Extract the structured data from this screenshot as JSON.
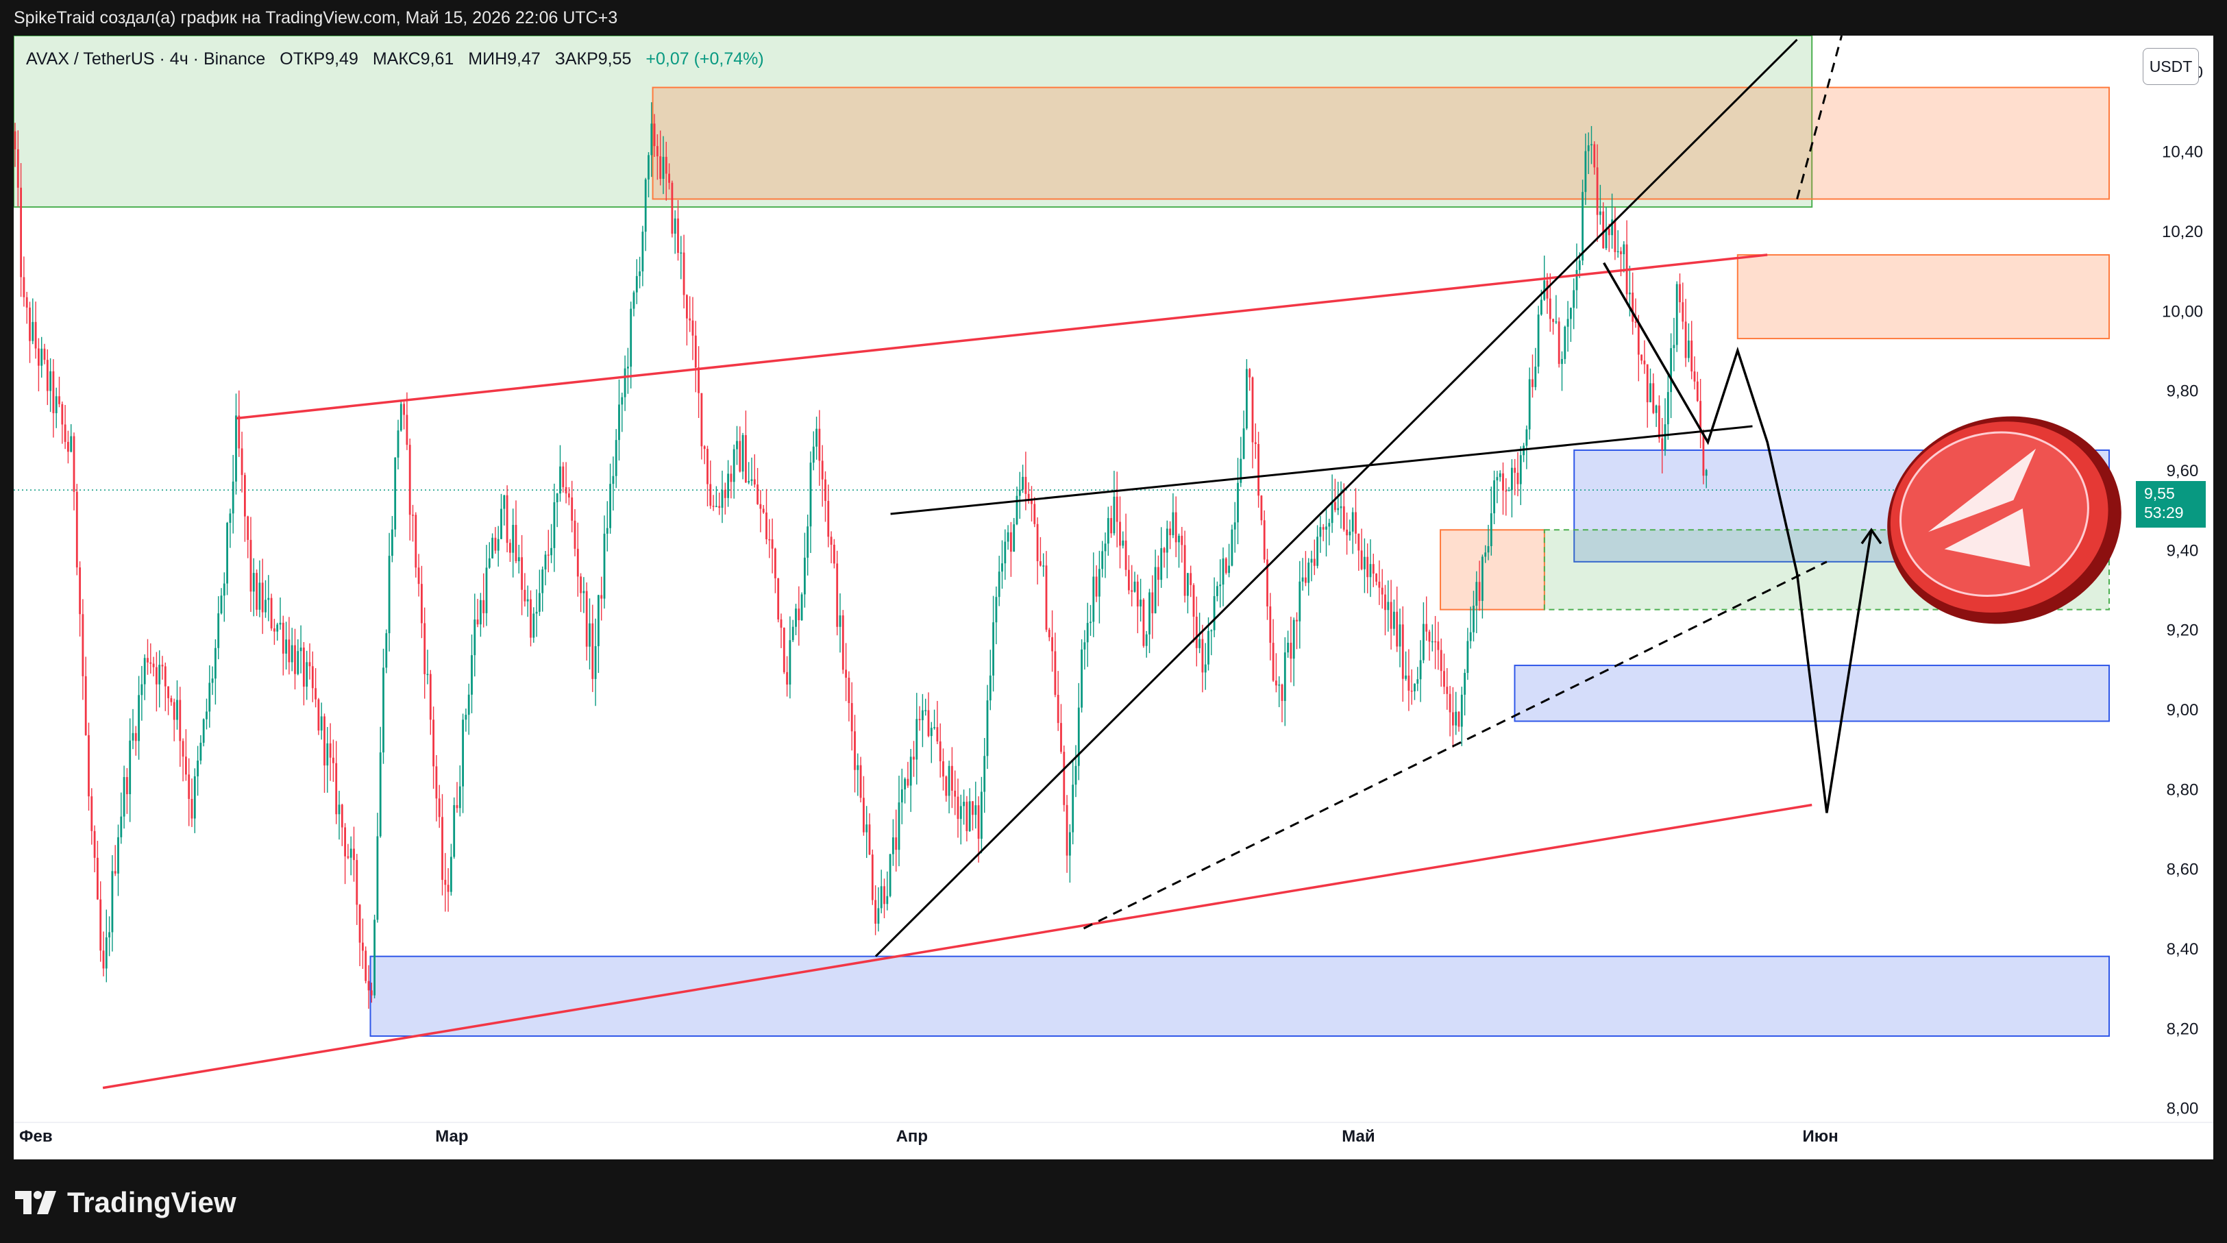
{
  "header": {
    "attribution": "SpikeTraid создал(а) график на TradingView.com, Май 15, 2026 22:06 UTC+3"
  },
  "legend": {
    "symbol": "AVAX / TetherUS · 4ч · Binance",
    "open": "ОТКР9,49",
    "high": "МАКС9,61",
    "low": "МИН9,47",
    "close": "ЗАКР9,55",
    "change": "+0,07 (+0,74%)"
  },
  "price_axis": {
    "unit": "USDT",
    "ticks": [
      "10,60",
      "10,40",
      "10,20",
      "10,00",
      "9,80",
      "9,60",
      "9,40",
      "9,20",
      "9,00",
      "8,80",
      "8,60",
      "8,40",
      "8,20",
      "8,00"
    ]
  },
  "time_axis": {
    "labels": [
      "Фев",
      "Мар",
      "Апр",
      "Май",
      "Июн"
    ]
  },
  "last_price": {
    "value": "9,55",
    "countdown": "53:29",
    "color": "#089981"
  },
  "footer": {
    "brand": "TradingView",
    "logo_icon": "tradingview-logo-icon"
  },
  "overlay_icon": "red-paper-plane-badge-icon",
  "colors": {
    "up": "#089981",
    "down": "#f23645",
    "trendline_red": "#f23645",
    "trendline_black": "#000000",
    "zone_green": "#4caf50",
    "zone_orange": "#ff7a3d",
    "zone_blue": "#2f57e8"
  },
  "chart_data": {
    "type": "candlestick",
    "symbol": "AVAX / TetherUS",
    "interval": "4ч",
    "exchange": "Binance",
    "y_unit": "USDT",
    "ylim": [
      7.96,
      10.69
    ],
    "xlim": [
      "2026-02-01",
      "2026-06-22"
    ],
    "x_ticks": [
      "2026-02-01",
      "2026-03-01",
      "2026-04-01",
      "2026-05-01",
      "2026-06-01"
    ],
    "x_tick_labels": [
      "Фев",
      "Мар",
      "Апр",
      "Май",
      "Июн"
    ],
    "y_ticks": [
      10.6,
      10.4,
      10.2,
      10.0,
      9.8,
      9.6,
      9.4,
      9.2,
      9.0,
      8.8,
      8.6,
      8.4,
      8.2,
      8.0
    ],
    "last_close": 9.55,
    "price_path": [
      [
        "2026-02-01",
        10.45
      ],
      [
        "2026-02-01 16:00",
        10.0
      ],
      [
        "2026-02-03",
        9.85
      ],
      [
        "2026-02-05",
        9.62
      ],
      [
        "2026-02-06",
        8.8
      ],
      [
        "2026-02-07",
        8.3
      ],
      [
        "2026-02-08",
        8.7
      ],
      [
        "2026-02-10",
        9.15
      ],
      [
        "2026-02-12",
        9.0
      ],
      [
        "2026-02-13",
        8.75
      ],
      [
        "2026-02-15",
        9.25
      ],
      [
        "2026-02-16",
        9.7
      ],
      [
        "2026-02-17",
        9.3
      ],
      [
        "2026-02-19",
        9.2
      ],
      [
        "2026-02-21",
        9.05
      ],
      [
        "2026-02-22",
        8.9
      ],
      [
        "2026-02-24",
        8.55
      ],
      [
        "2026-02-25",
        8.25
      ],
      [
        "2026-02-26",
        9.2
      ],
      [
        "2026-02-27",
        9.8
      ],
      [
        "2026-02-28",
        9.4
      ],
      [
        "2026-03-01",
        9.0
      ],
      [
        "2026-03-02",
        8.5
      ],
      [
        "2026-03-04",
        9.2
      ],
      [
        "2026-03-06",
        9.5
      ],
      [
        "2026-03-08",
        9.2
      ],
      [
        "2026-03-10",
        9.6
      ],
      [
        "2026-03-12",
        9.1
      ],
      [
        "2026-03-13",
        9.5
      ],
      [
        "2026-03-14",
        9.8
      ],
      [
        "2026-03-15",
        10.1
      ],
      [
        "2026-03-16",
        10.45
      ],
      [
        "2026-03-17",
        10.3
      ],
      [
        "2026-03-18",
        10.1
      ],
      [
        "2026-03-19",
        9.8
      ],
      [
        "2026-03-20",
        9.5
      ],
      [
        "2026-03-22",
        9.65
      ],
      [
        "2026-03-24",
        9.4
      ],
      [
        "2026-03-25",
        9.1
      ],
      [
        "2026-03-26",
        9.3
      ],
      [
        "2026-03-27",
        9.75
      ],
      [
        "2026-03-28",
        9.4
      ],
      [
        "2026-03-29",
        9.05
      ],
      [
        "2026-03-30",
        8.8
      ],
      [
        "2026-03-31",
        8.5
      ],
      [
        "2026-04-01",
        8.6
      ],
      [
        "2026-04-03",
        9.0
      ],
      [
        "2026-04-05",
        8.8
      ],
      [
        "2026-04-07",
        8.7
      ],
      [
        "2026-04-08",
        9.3
      ],
      [
        "2026-04-10",
        9.55
      ],
      [
        "2026-04-11",
        9.4
      ],
      [
        "2026-04-12",
        9.1
      ],
      [
        "2026-04-13",
        8.6
      ],
      [
        "2026-04-14",
        9.2
      ],
      [
        "2026-04-16",
        9.5
      ],
      [
        "2026-04-18",
        9.2
      ],
      [
        "2026-04-20",
        9.5
      ],
      [
        "2026-04-22",
        9.1
      ],
      [
        "2026-04-24",
        9.45
      ],
      [
        "2026-04-25",
        9.85
      ],
      [
        "2026-04-26",
        9.45
      ],
      [
        "2026-04-27",
        9.0
      ],
      [
        "2026-04-29",
        9.35
      ],
      [
        "2026-05-01",
        9.55
      ],
      [
        "2026-05-03",
        9.35
      ],
      [
        "2026-05-05",
        9.2
      ],
      [
        "2026-05-06",
        9.05
      ],
      [
        "2026-05-07",
        9.2
      ],
      [
        "2026-05-08",
        9.1
      ],
      [
        "2026-05-09",
        8.95
      ],
      [
        "2026-05-10",
        9.2
      ],
      [
        "2026-05-11",
        9.4
      ],
      [
        "2026-05-12",
        9.6
      ],
      [
        "2026-05-13",
        9.55
      ],
      [
        "2026-05-14",
        9.8
      ],
      [
        "2026-05-15",
        10.05
      ],
      [
        "2026-05-16",
        9.9
      ],
      [
        "2026-05-17",
        10.0
      ],
      [
        "2026-05-18",
        10.45
      ],
      [
        "2026-05-19",
        10.15
      ],
      [
        "2026-05-20",
        10.2
      ],
      [
        "2026-05-21",
        10.0
      ],
      [
        "2026-05-22",
        9.8
      ],
      [
        "2026-05-23",
        9.65
      ],
      [
        "2026-05-24",
        10.05
      ],
      [
        "2026-05-25",
        9.8
      ],
      [
        "2026-05-26",
        9.55
      ]
    ],
    "zones": [
      {
        "color": "green",
        "from": "2026-02-01",
        "to": "2026-06-02",
        "top": 10.7,
        "bottom": 10.26
      },
      {
        "color": "orange",
        "from": "2026-03-16",
        "to": "2026-06-22",
        "top": 10.56,
        "bottom": 10.28
      },
      {
        "color": "orange",
        "from": "2026-05-28",
        "to": "2026-06-22",
        "top": 10.14,
        "bottom": 9.93
      },
      {
        "color": "blue",
        "from": "2026-05-17",
        "to": "2026-06-22",
        "top": 9.65,
        "bottom": 9.37
      },
      {
        "color": "orange",
        "from": "2026-05-08",
        "to": "2026-05-15",
        "top": 9.45,
        "bottom": 9.25
      },
      {
        "color": "green",
        "from": "2026-05-15",
        "to": "2026-06-22",
        "top": 9.45,
        "bottom": 9.25,
        "dashed": true
      },
      {
        "color": "blue",
        "from": "2026-05-13",
        "to": "2026-06-22",
        "top": 9.11,
        "bottom": 8.97
      },
      {
        "color": "blue",
        "from": "2026-02-25",
        "to": "2026-06-22",
        "top": 8.38,
        "bottom": 8.18
      }
    ],
    "trendlines": [
      {
        "color": "red",
        "from": [
          "2026-02-07",
          8.05
        ],
        "to": [
          "2026-06-02",
          8.76
        ]
      },
      {
        "color": "red",
        "from": [
          "2026-02-16",
          9.73
        ],
        "to": [
          "2026-05-30",
          10.14
        ]
      },
      {
        "color": "black",
        "from": [
          "2026-03-31",
          8.38
        ],
        "to": [
          "2026-06-01",
          10.68
        ]
      },
      {
        "color": "black",
        "from": [
          "2026-04-01",
          9.49
        ],
        "to": [
          "2026-05-29",
          9.71
        ]
      },
      {
        "color": "black",
        "dashed": true,
        "from": [
          "2026-04-14",
          8.45
        ],
        "to": [
          "2026-06-03",
          9.37
        ]
      },
      {
        "color": "black",
        "dashed": true,
        "from": [
          "2026-06-01",
          10.28
        ],
        "to": [
          "2026-06-04",
          10.69
        ]
      }
    ],
    "projection": [
      [
        "2026-05-19",
        10.12
      ],
      [
        "2026-05-26",
        9.67
      ],
      [
        "2026-05-28",
        9.9
      ],
      [
        "2026-05-30",
        9.67
      ],
      [
        "2026-06-01",
        9.34
      ],
      [
        "2026-06-03",
        8.74
      ],
      [
        "2026-06-06",
        9.45
      ]
    ]
  }
}
